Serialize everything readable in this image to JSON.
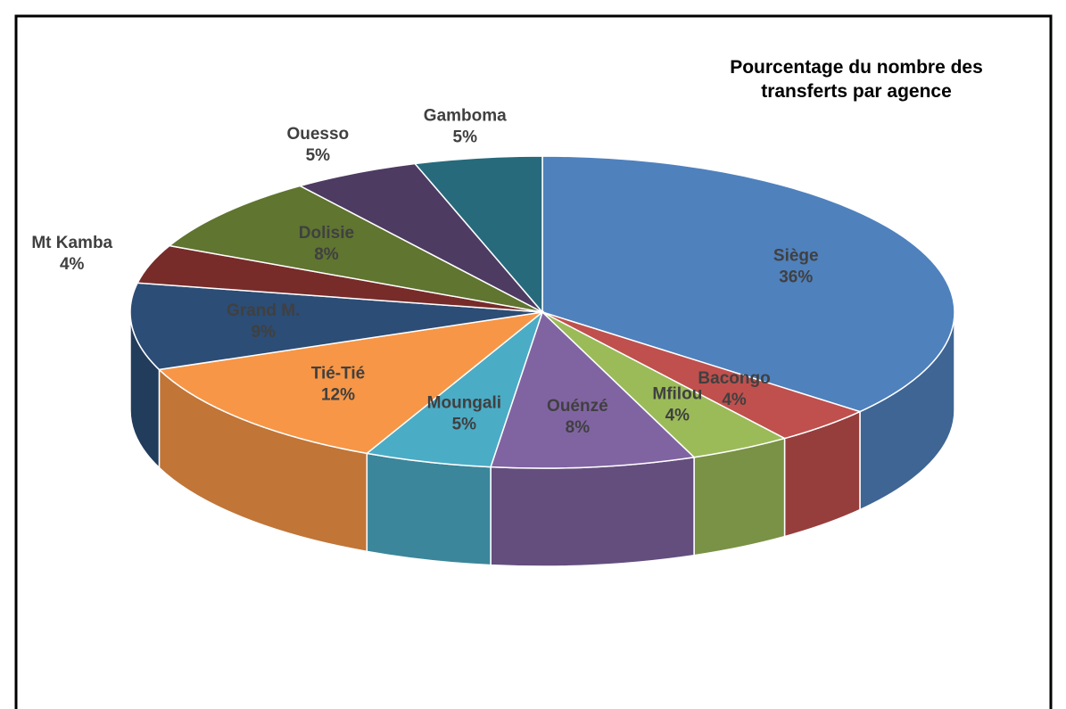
{
  "chart_data": {
    "type": "pie3d",
    "title": "Pourcentage du nombre des transferts par agence",
    "categories": [
      "Siège",
      "Bacongo",
      "Mfilou",
      "Ouénzé",
      "Moungali",
      "Tié-Tié",
      "Grand M.",
      "Mt Kamba",
      "Dolisie",
      "Ouesso",
      "Gamboma"
    ],
    "values": [
      36,
      4,
      4,
      8,
      5,
      12,
      9,
      4,
      8,
      5,
      5
    ],
    "value_labels": [
      "36%",
      "4%",
      "4%",
      "8%",
      "5%",
      "12%",
      "9%",
      "4%",
      "8%",
      "5%",
      "5%"
    ],
    "colors": [
      "#4f81bd",
      "#c0504d",
      "#9bbb59",
      "#8064a2",
      "#4bacc6",
      "#f79646",
      "#2c4d75",
      "#772c2a",
      "#5f7530",
      "#4d3b62",
      "#276a7c"
    ]
  }
}
